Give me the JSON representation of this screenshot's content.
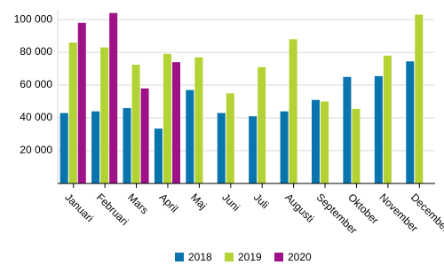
{
  "chart_data": {
    "type": "bar",
    "categories": [
      "Januari",
      "Februari",
      "Mars",
      "April",
      "Maj",
      "Juni",
      "Juli",
      "Augusti",
      "September",
      "Oktober",
      "November",
      "December"
    ],
    "series": [
      {
        "name": "2018",
        "color": "#0a75ad",
        "values": [
          43000,
          44000,
          46000,
          33500,
          57000,
          43000,
          41000,
          44000,
          51000,
          65000,
          65500,
          74500
        ]
      },
      {
        "name": "2019",
        "color": "#b3d335",
        "values": [
          86000,
          83000,
          72500,
          79000,
          77000,
          55000,
          71000,
          88000,
          50000,
          45500,
          78000,
          103000
        ]
      },
      {
        "name": "2020",
        "color": "#9e1189",
        "values": [
          98000,
          104000,
          58000,
          74000,
          null,
          null,
          null,
          null,
          null,
          null,
          null,
          null
        ]
      }
    ],
    "ylim": [
      0,
      106000
    ],
    "yticks": [
      {
        "value": 20000,
        "label": "20 000"
      },
      {
        "value": 40000,
        "label": "40 000"
      },
      {
        "value": 60000,
        "label": "60 000"
      },
      {
        "value": 80000,
        "label": "80 000"
      },
      {
        "value": 100000,
        "label": "100 000"
      }
    ],
    "grid": true,
    "legend": "bottom"
  }
}
